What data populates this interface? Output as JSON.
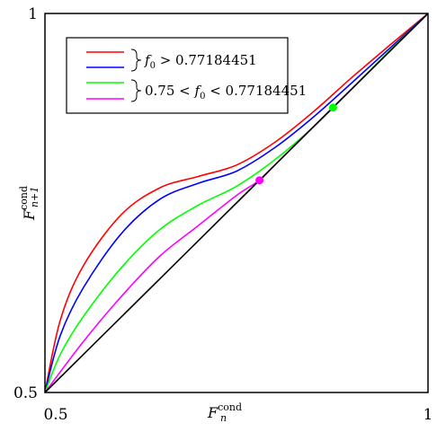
{
  "chart_data": {
    "type": "line",
    "xlabel": "F_n^cond",
    "ylabel": "F_{n+1}^cond",
    "xlim": [
      0.5,
      1
    ],
    "ylim": [
      0.5,
      1
    ],
    "x_ticks": [
      "0.5",
      "1"
    ],
    "y_ticks": [
      "0.5",
      "1"
    ],
    "grid": false,
    "legend": {
      "placement": "top-left",
      "groups": [
        {
          "label": "f_0 > 0.77184451",
          "series": [
            "red",
            "blue"
          ]
        },
        {
          "label": "0.75 < f_0 < 0.77184451",
          "series": [
            "green",
            "magenta"
          ]
        }
      ]
    },
    "series": [
      {
        "color": "#ff0000",
        "x": [
          0.5,
          0.52,
          0.55,
          0.6,
          0.65,
          0.7,
          0.75,
          0.8,
          0.85,
          0.9,
          0.95,
          1.0
        ],
        "y": [
          0.5,
          0.595,
          0.667,
          0.735,
          0.77,
          0.785,
          0.8,
          0.83,
          0.87,
          0.915,
          0.958,
          1.0
        ]
      },
      {
        "color": "#0000ff",
        "x": [
          0.5,
          0.52,
          0.55,
          0.6,
          0.65,
          0.7,
          0.75,
          0.8,
          0.85,
          0.9,
          0.95,
          1.0
        ],
        "y": [
          0.5,
          0.575,
          0.638,
          0.71,
          0.755,
          0.776,
          0.792,
          0.823,
          0.863,
          0.908,
          0.954,
          1.0
        ]
      },
      {
        "color": "#00ff00",
        "x": [
          0.5,
          0.52,
          0.55,
          0.6,
          0.65,
          0.7,
          0.75,
          0.8,
          0.85,
          0.9,
          0.95,
          1.0
        ],
        "y": [
          0.5,
          0.55,
          0.6,
          0.665,
          0.715,
          0.747,
          0.772,
          0.807,
          0.85,
          0.9,
          0.951,
          1.0
        ]
      },
      {
        "color": "#ff00ff",
        "x": [
          0.5,
          0.55,
          0.6,
          0.65,
          0.7,
          0.75,
          0.78,
          0.8,
          0.85,
          0.9,
          0.95,
          1.0
        ],
        "y": [
          0.5,
          0.567,
          0.627,
          0.68,
          0.72,
          0.76,
          0.78,
          0.8,
          0.85,
          0.9,
          0.95,
          1.0
        ]
      },
      {
        "color": "#000000",
        "x": [
          0.5,
          1.0
        ],
        "y": [
          0.5,
          1.0
        ]
      }
    ],
    "points": [
      {
        "color": "#ff00ff",
        "x": 0.78,
        "y": 0.78
      },
      {
        "color": "#00ff00",
        "x": 0.876,
        "y": 0.876
      }
    ]
  }
}
